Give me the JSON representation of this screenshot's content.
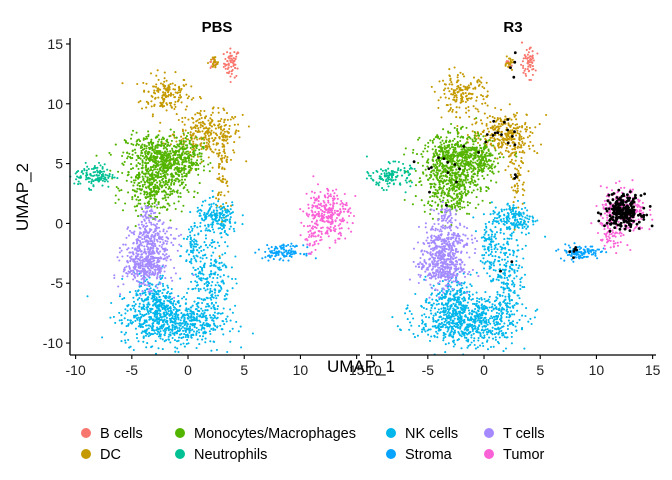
{
  "chart_data": {
    "type": "scatter",
    "panels": [
      "PBS",
      "R3"
    ],
    "xlabel": "UMAP_1",
    "ylabel": "UMAP_2",
    "xlim": [
      -10.5,
      15.3
    ],
    "ylim": [
      -11,
      15.5
    ],
    "xticks": [
      -10,
      -5,
      0,
      5,
      10,
      15
    ],
    "xtick_labels": [
      "-10",
      "-5",
      "0",
      "5",
      "10",
      "15"
    ],
    "yticks": [
      -10,
      -5,
      0,
      5,
      10,
      15
    ],
    "ytick_labels": [
      "-10",
      "-5",
      "0",
      "5",
      "10",
      "15"
    ],
    "grid": false,
    "legend_position": "bottom",
    "series": [
      {
        "name": "B cells",
        "color": "#F8766D",
        "clusters": [
          {
            "cx": 3.9,
            "cy": 13.4,
            "sx": 0.35,
            "sy": 0.6,
            "n": 60
          },
          {
            "cx": 2.2,
            "cy": 13.3,
            "sx": 0.2,
            "sy": 0.25,
            "n": 12
          }
        ]
      },
      {
        "name": "DC",
        "color": "#C49A00",
        "clusters": [
          {
            "cx": -2.0,
            "cy": 10.8,
            "sx": 1.1,
            "sy": 0.8,
            "n": 160
          },
          {
            "cx": 1.8,
            "cy": 7.5,
            "sx": 1.5,
            "sy": 0.9,
            "n": 260
          },
          {
            "cx": 3.0,
            "cy": 4.5,
            "sx": 0.35,
            "sy": 1.8,
            "n": 80
          },
          {
            "cx": 2.3,
            "cy": 13.4,
            "sx": 0.25,
            "sy": 0.3,
            "n": 20
          }
        ]
      },
      {
        "name": "Monocytes/Macrophages",
        "color": "#53B400",
        "clusters": [
          {
            "cx": -2.5,
            "cy": 5.5,
            "sx": 1.5,
            "sy": 1.0,
            "n": 500
          },
          {
            "cx": -3.0,
            "cy": 3.0,
            "sx": 1.3,
            "sy": 1.1,
            "n": 350
          },
          {
            "cx": -0.3,
            "cy": 5.3,
            "sx": 0.8,
            "sy": 0.9,
            "n": 150
          }
        ]
      },
      {
        "name": "Neutrophils",
        "color": "#00C094",
        "clusters": [
          {
            "cx": -8.3,
            "cy": 4.0,
            "sx": 0.9,
            "sy": 0.5,
            "n": 120
          }
        ]
      },
      {
        "name": "NK cells",
        "color": "#00B6EB",
        "clusters": [
          {
            "cx": -1.5,
            "cy": -8.2,
            "sx": 2.2,
            "sy": 1.0,
            "n": 650
          },
          {
            "cx": 2.0,
            "cy": -4.5,
            "sx": 0.9,
            "sy": 2.0,
            "n": 240
          },
          {
            "cx": -3.0,
            "cy": -6.3,
            "sx": 0.9,
            "sy": 1.0,
            "n": 200
          },
          {
            "cx": 2.6,
            "cy": 0.4,
            "sx": 1.0,
            "sy": 0.7,
            "n": 170
          },
          {
            "cx": 0.4,
            "cy": -1.6,
            "sx": 0.4,
            "sy": 1.0,
            "n": 60
          }
        ]
      },
      {
        "name": "Stroma",
        "color": "#06A4FF",
        "clusters": [
          {
            "cx": 8.5,
            "cy": -2.4,
            "sx": 0.9,
            "sy": 0.3,
            "n": 110
          }
        ]
      },
      {
        "name": "T cells",
        "color": "#A58AFF",
        "clusters": [
          {
            "cx": -3.8,
            "cy": -3.5,
            "sx": 1.0,
            "sy": 0.9,
            "n": 380
          },
          {
            "cx": -3.2,
            "cy": -1.3,
            "sx": 1.0,
            "sy": 0.7,
            "n": 200
          },
          {
            "cx": -3.5,
            "cy": 0.8,
            "sx": 0.4,
            "sy": 0.4,
            "n": 40
          }
        ]
      },
      {
        "name": "Tumor",
        "color": "#FB61D7",
        "clusters": [
          {
            "cx": 12.4,
            "cy": 0.9,
            "sx": 1.0,
            "sy": 1.0,
            "n": 260
          },
          {
            "cx": 11.2,
            "cy": -1.3,
            "sx": 0.6,
            "sy": 0.6,
            "n": 40
          }
        ]
      }
    ],
    "highlight": {
      "panel": "R3",
      "color": "#000000",
      "clusters": [
        {
          "cx": 12.4,
          "cy": 1.0,
          "sx": 0.8,
          "sy": 0.7,
          "n": 220
        },
        {
          "cx": 1.8,
          "cy": 7.5,
          "sx": 1.2,
          "sy": 0.7,
          "n": 14
        },
        {
          "cx": -3.3,
          "cy": 4.3,
          "sx": 1.2,
          "sy": 1.2,
          "n": 14
        },
        {
          "cx": 2.5,
          "cy": 13.4,
          "sx": 0.3,
          "sy": 0.5,
          "n": 4
        },
        {
          "cx": 7.8,
          "cy": -2.2,
          "sx": 0.5,
          "sy": 0.3,
          "n": 6
        },
        {
          "cx": 2.2,
          "cy": -3.0,
          "sx": 0.3,
          "sy": 0.5,
          "n": 2
        },
        {
          "cx": 2.8,
          "cy": 3.5,
          "sx": 0.3,
          "sy": 1.0,
          "n": 3
        }
      ]
    }
  }
}
